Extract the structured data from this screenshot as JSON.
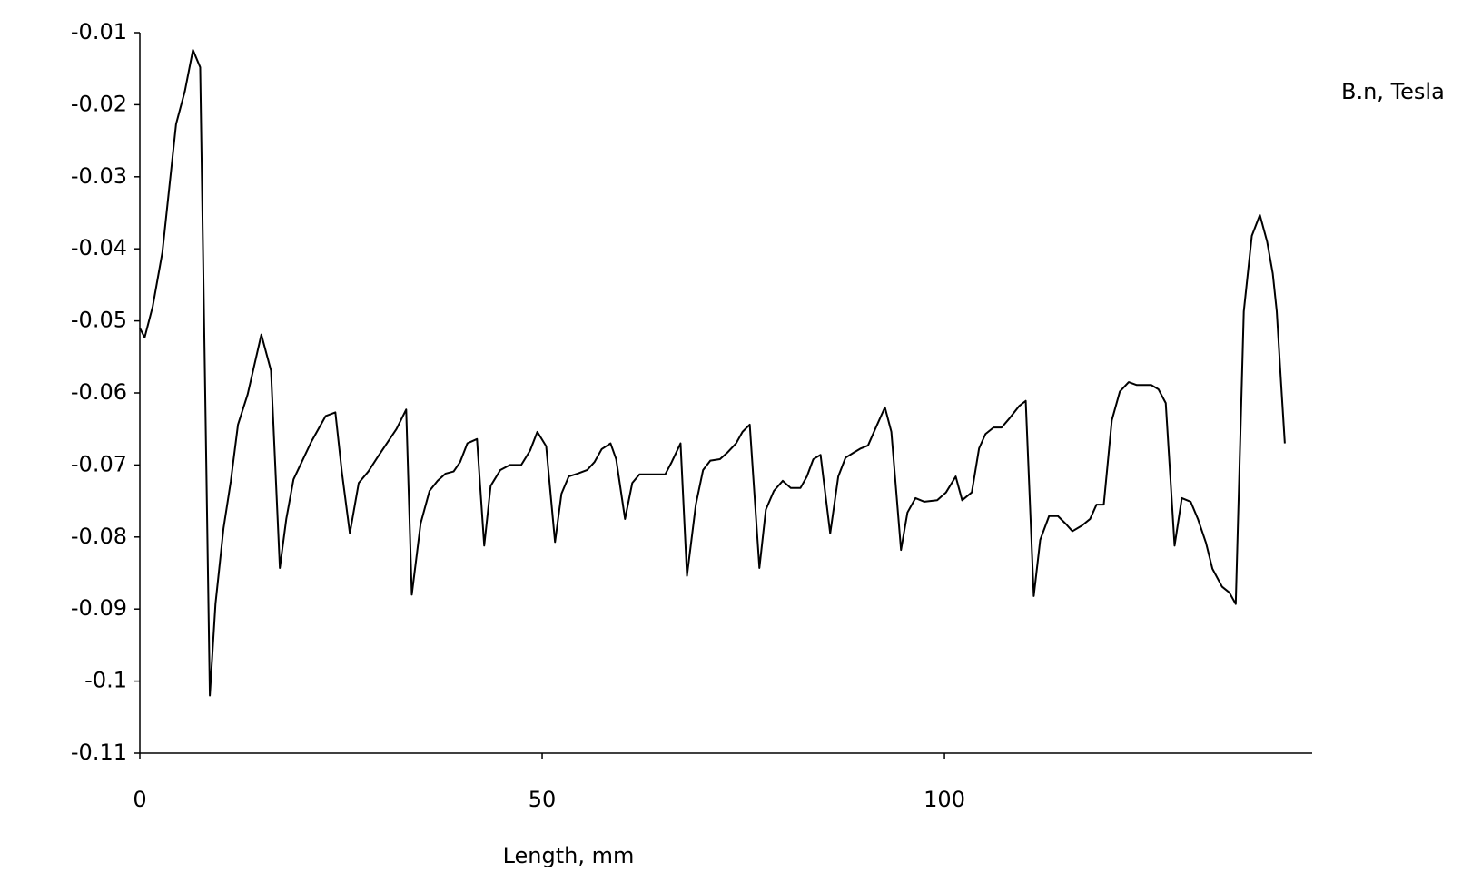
{
  "chart_data": {
    "type": "line",
    "x_label": "Length, mm",
    "x": [
      0,
      0.6,
      1.6,
      2.8,
      4.5,
      5.6,
      6.6,
      7.5,
      8.7,
      9.4,
      10.4,
      11.3,
      12.2,
      13.4,
      15.1,
      16.3,
      17.4,
      18.2,
      19.1,
      20.2,
      21.3,
      23.1,
      24.3,
      25.1,
      26.1,
      27.2,
      28.4,
      29.5,
      30.7,
      31.9,
      33.1,
      33.8,
      34.9,
      36.0,
      37.0,
      38.0,
      39.0,
      39.8,
      40.7,
      41.9,
      42.8,
      43.6,
      44.8,
      46.0,
      47.4,
      48.5,
      49.4,
      50.5,
      51.6,
      52.4,
      53.3,
      54.4,
      55.6,
      56.5,
      57.4,
      58.5,
      59.2,
      60.3,
      61.2,
      62.1,
      63.3,
      65.3,
      66.1,
      67.2,
      68.0,
      69.1,
      70.0,
      70.9,
      72.1,
      73.0,
      74.1,
      74.9,
      75.8,
      77.0,
      77.8,
      78.8,
      79.9,
      80.9,
      82.1,
      82.9,
      83.7,
      84.6,
      85.8,
      86.8,
      87.7,
      88.7,
      89.6,
      90.5,
      91.4,
      92.6,
      93.4,
      94.6,
      95.4,
      96.4,
      97.5,
      99.1,
      100.2,
      101.4,
      102.2,
      103.4,
      104.3,
      105.1,
      106.1,
      107.1,
      108.1,
      109.3,
      110.1,
      111.1,
      111.9,
      113.0,
      114.1,
      115.1,
      115.9,
      117.1,
      118.1,
      118.9,
      119.8,
      120.8,
      121.8,
      122.9,
      123.9,
      125.7,
      126.6,
      127.5,
      128.6,
      129.5,
      130.6,
      131.5,
      132.5,
      133.3,
      134.5,
      135.4,
      136.2,
      137.2,
      138.2,
      139.2,
      140.1,
      140.8,
      141.3,
      141.8,
      142.3
    ],
    "series": [
      {
        "name": "B.n, Tesla",
        "color": "#000000",
        "values": [
          -0.051,
          -0.0523,
          -0.048,
          -0.0405,
          -0.0227,
          -0.0181,
          -0.0124,
          -0.0148,
          -0.102,
          -0.0893,
          -0.0788,
          -0.0723,
          -0.0644,
          -0.0602,
          -0.0519,
          -0.0569,
          -0.0843,
          -0.0775,
          -0.072,
          -0.0694,
          -0.0668,
          -0.0632,
          -0.0627,
          -0.0709,
          -0.0795,
          -0.0725,
          -0.0709,
          -0.069,
          -0.067,
          -0.065,
          -0.0623,
          -0.088,
          -0.0781,
          -0.0736,
          -0.0722,
          -0.0712,
          -0.0709,
          -0.0696,
          -0.067,
          -0.0664,
          -0.0812,
          -0.0729,
          -0.0707,
          -0.07,
          -0.07,
          -0.068,
          -0.0654,
          -0.0674,
          -0.0807,
          -0.074,
          -0.0716,
          -0.0712,
          -0.0707,
          -0.0696,
          -0.0678,
          -0.067,
          -0.0692,
          -0.0775,
          -0.0725,
          -0.0713,
          -0.0713,
          -0.0713,
          -0.0696,
          -0.067,
          -0.0854,
          -0.0755,
          -0.0707,
          -0.0694,
          -0.0692,
          -0.0683,
          -0.067,
          -0.0654,
          -0.0644,
          -0.0843,
          -0.0762,
          -0.0736,
          -0.0722,
          -0.0732,
          -0.0732,
          -0.0716,
          -0.0692,
          -0.0686,
          -0.0795,
          -0.0716,
          -0.069,
          -0.0683,
          -0.0677,
          -0.0673,
          -0.065,
          -0.062,
          -0.0654,
          -0.0818,
          -0.0766,
          -0.0746,
          -0.0751,
          -0.0749,
          -0.0738,
          -0.0716,
          -0.0749,
          -0.0738,
          -0.0677,
          -0.0657,
          -0.0648,
          -0.0648,
          -0.0635,
          -0.0618,
          -0.0611,
          -0.0882,
          -0.0804,
          -0.0771,
          -0.0771,
          -0.0782,
          -0.0792,
          -0.0784,
          -0.0775,
          -0.0755,
          -0.0755,
          -0.0638,
          -0.0598,
          -0.0585,
          -0.0589,
          -0.0589,
          -0.0595,
          -0.0614,
          -0.0812,
          -0.0746,
          -0.0751,
          -0.0775,
          -0.0808,
          -0.0844,
          -0.0869,
          -0.0877,
          -0.0893,
          -0.0487,
          -0.0382,
          -0.0353,
          -0.039,
          -0.0434,
          -0.0487,
          -0.058,
          -0.067
        ]
      }
    ],
    "xlim": [
      0,
      145.7
    ],
    "xticks": [
      0,
      50,
      100
    ],
    "ylim": [
      -0.11,
      -0.01
    ],
    "yticks": [
      -0.11,
      -0.1,
      -0.09,
      -0.08,
      -0.07,
      -0.06,
      -0.05,
      -0.04,
      -0.03,
      -0.02,
      -0.01
    ],
    "grid": false,
    "legend": "top-right"
  }
}
